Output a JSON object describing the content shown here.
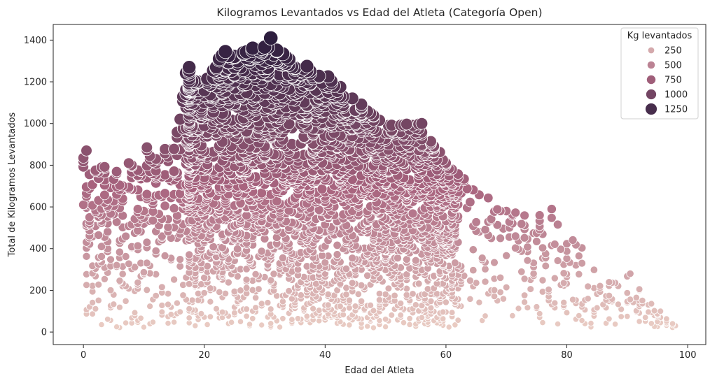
{
  "chart_data": {
    "type": "scatter",
    "title": "Kilogramos Levantados vs Edad del Atleta (Categoría Open)",
    "xlabel": "Edad del Atleta",
    "ylabel": "Total de Kilogramos Levantados",
    "xlim": [
      -5,
      103
    ],
    "ylim": [
      -60,
      1475
    ],
    "xticks": [
      0,
      20,
      40,
      60,
      80,
      100
    ],
    "yticks": [
      0,
      200,
      400,
      600,
      800,
      1000,
      1200,
      1400
    ],
    "grid": false,
    "legend": {
      "title": "Kg levantados",
      "placement": "top-right",
      "entries": [
        {
          "label": "250",
          "value": 250
        },
        {
          "label": "500",
          "value": 500
        },
        {
          "label": "750",
          "value": 750
        },
        {
          "label": "1000",
          "value": 1000
        },
        {
          "label": "1250",
          "value": 1250
        }
      ]
    },
    "hue_size_variable": "Kg levantados",
    "colormap": {
      "low": "#ecd0c6",
      "mid": "#a8637e",
      "high": "#2d1e3e"
    },
    "envelope": [
      {
        "age": 0,
        "max_kg": 870
      },
      {
        "age": 5,
        "max_kg": 760
      },
      {
        "age": 10,
        "max_kg": 880
      },
      {
        "age": 15,
        "max_kg": 880
      },
      {
        "age": 17,
        "max_kg": 1270
      },
      {
        "age": 20,
        "max_kg": 1200
      },
      {
        "age": 23,
        "max_kg": 1340
      },
      {
        "age": 26,
        "max_kg": 1340
      },
      {
        "age": 31,
        "max_kg": 1410
      },
      {
        "age": 35,
        "max_kg": 1280
      },
      {
        "age": 40,
        "max_kg": 1240
      },
      {
        "age": 45,
        "max_kg": 1120
      },
      {
        "age": 50,
        "max_kg": 1000
      },
      {
        "age": 56,
        "max_kg": 1000
      },
      {
        "age": 60,
        "max_kg": 820
      },
      {
        "age": 65,
        "max_kg": 680
      },
      {
        "age": 70,
        "max_kg": 600
      },
      {
        "age": 75,
        "max_kg": 560
      },
      {
        "age": 77,
        "max_kg": 590
      },
      {
        "age": 80,
        "max_kg": 460
      },
      {
        "age": 84,
        "max_kg": 390
      },
      {
        "age": 87,
        "max_kg": 250
      },
      {
        "age": 90,
        "max_kg": 280
      },
      {
        "age": 95,
        "max_kg": 100
      },
      {
        "age": 98,
        "max_kg": 30
      }
    ],
    "notable_points": [
      {
        "x": 31,
        "y": 1410
      },
      {
        "x": 23.5,
        "y": 1345
      },
      {
        "x": 26.5,
        "y": 1340
      },
      {
        "x": 32,
        "y": 1350
      },
      {
        "x": 17.5,
        "y": 1270
      },
      {
        "x": 37,
        "y": 1275
      },
      {
        "x": 0.5,
        "y": 870
      },
      {
        "x": 10.5,
        "y": 885
      },
      {
        "x": 56,
        "y": 1000
      },
      {
        "x": 77.5,
        "y": 590
      },
      {
        "x": 90.5,
        "y": 280
      },
      {
        "x": 95.5,
        "y": 100
      },
      {
        "x": 96.5,
        "y": 45
      },
      {
        "x": 98,
        "y": 30
      }
    ]
  }
}
